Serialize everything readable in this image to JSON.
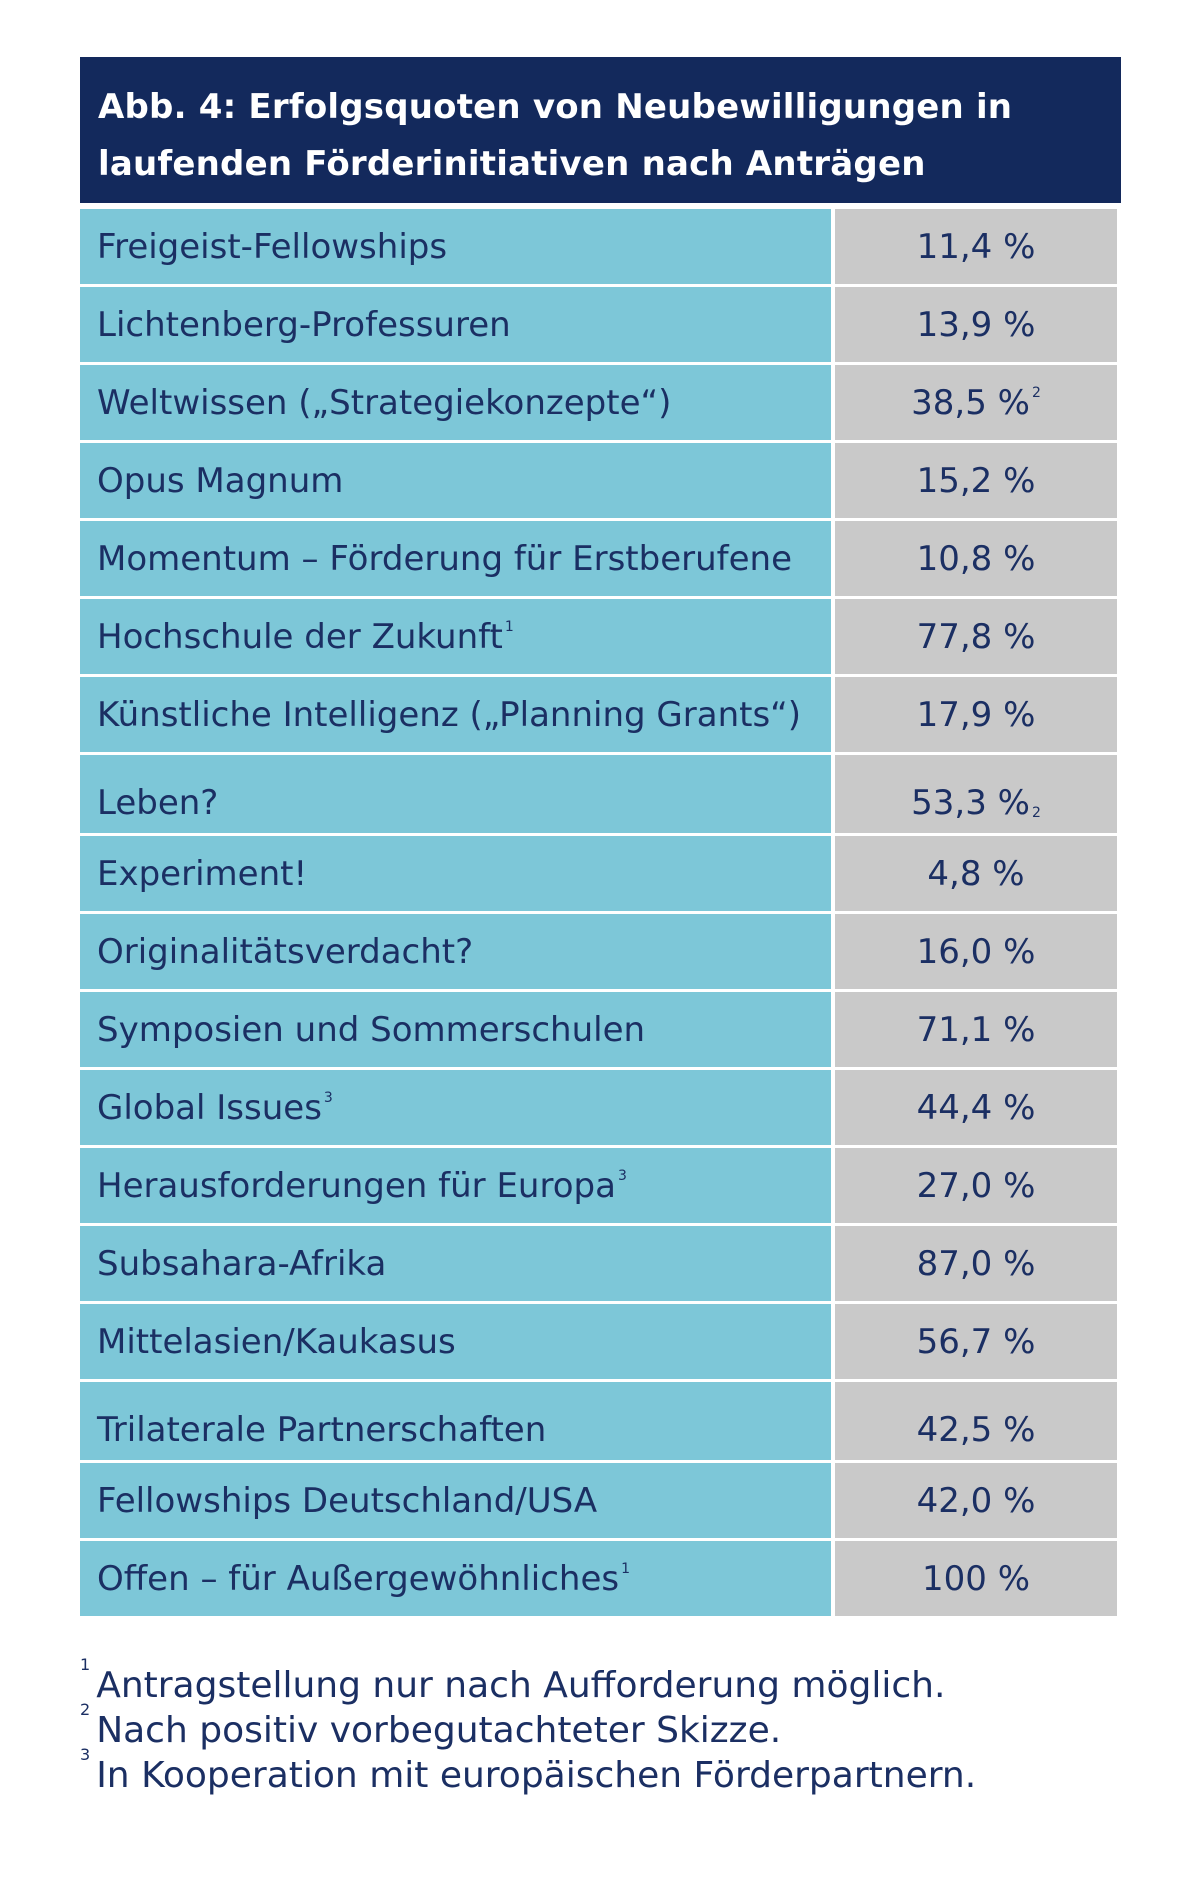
{
  "title": "Abb. 4: Erfolgsquoten von Neubewilligungen in laufenden Förderinitiativen nach Anträgen",
  "rows": [
    {
      "name": "Freigeist-Fellowships",
      "name_note": "",
      "value": "11,4 %",
      "value_note": ""
    },
    {
      "name": "Lichtenberg-Professuren",
      "name_note": "",
      "value": "13,9 %",
      "value_note": ""
    },
    {
      "name": "Weltwissen („Strategiekonzepte“)",
      "name_note": "",
      "value": "38,5 %",
      "value_note": "2"
    },
    {
      "name": "Opus Magnum",
      "name_note": "",
      "value": "15,2 %",
      "value_note": ""
    },
    {
      "name": "Momentum – Förderung für Erstberufene",
      "name_note": "",
      "value": "10,8 %",
      "value_note": ""
    },
    {
      "name": "Hochschule der Zukunft",
      "name_note": "1",
      "value": "77,8 %",
      "value_note": ""
    },
    {
      "name": "Künstliche Intelligenz („Planning Grants“)",
      "name_note": "",
      "value": "17,9 %",
      "value_note": ""
    },
    {
      "name": "Leben?",
      "name_note": "",
      "value": "53,3 %",
      "value_note": "2"
    },
    {
      "name": "Experiment!",
      "name_note": "",
      "value": "4,8 %",
      "value_note": ""
    },
    {
      "name": "Originalitätsverdacht?",
      "name_note": "",
      "value": "16,0 %",
      "value_note": ""
    },
    {
      "name": "Symposien und Sommerschulen",
      "name_note": "",
      "value": "71,1 %",
      "value_note": ""
    },
    {
      "name": "Global Issues",
      "name_note": "3",
      "value": "44,4 %",
      "value_note": ""
    },
    {
      "name": "Herausforderungen für Europa",
      "name_note": "3",
      "value": "27,0 %",
      "value_note": ""
    },
    {
      "name": "Subsahara-Afrika",
      "name_note": "",
      "value": "87,0 %",
      "value_note": ""
    },
    {
      "name": "Mittelasien/Kaukasus",
      "name_note": "",
      "value": "56,7 %",
      "value_note": ""
    },
    {
      "name": "Trilaterale Partnerschaften",
      "name_note": "",
      "value": "42,5 %",
      "value_note": ""
    },
    {
      "name": "Fellowships Deutschland/USA",
      "name_note": "",
      "value": "42,0 %",
      "value_note": ""
    },
    {
      "name": "Offen – für Außergewöhnliches",
      "name_note": "1",
      "value": "100 %",
      "value_note": ""
    }
  ],
  "footnotes": [
    {
      "mark": "1",
      "text": "Antragstellung nur nach Aufforderung möglich."
    },
    {
      "mark": "2",
      "text": "Nach positiv vorbegutachteter Skizze."
    },
    {
      "mark": "3",
      "text": "In Kooperation mit europäischen Förderpartnern."
    }
  ]
}
